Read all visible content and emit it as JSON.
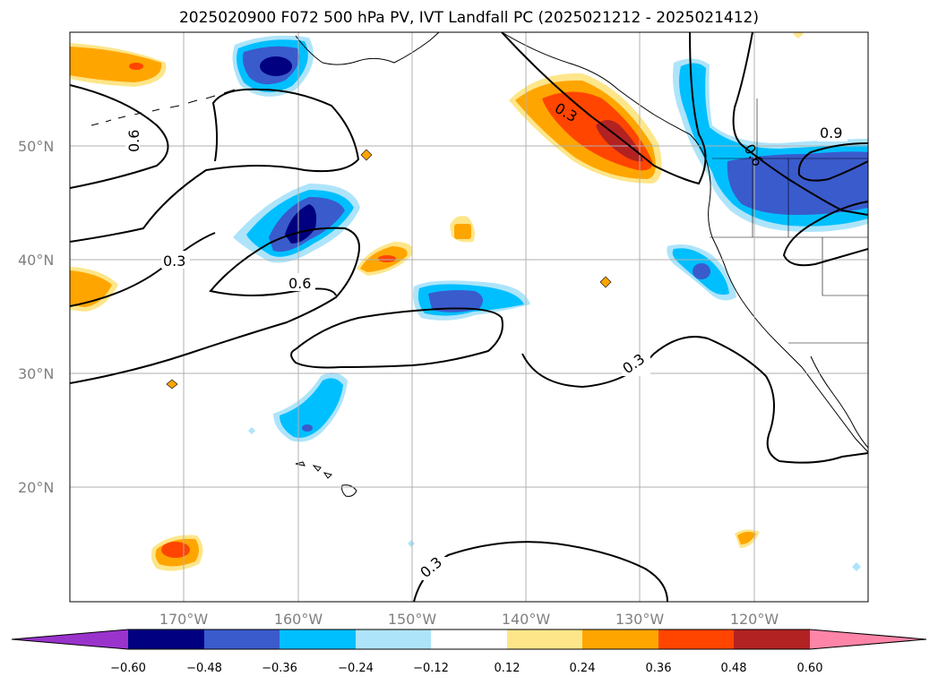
{
  "title": "2025020900 F072 500 hPa PV, IVT Landfall PC (2025021212 - 2025021412)",
  "map": {
    "lon_range": [
      180,
      110
    ],
    "lat_range": [
      10,
      60
    ],
    "lat_labels": [
      "20°N",
      "30°N",
      "40°N",
      "50°N"
    ],
    "lon_labels": [
      "170°W",
      "160°W",
      "150°W",
      "140°W",
      "130°W",
      "120°W"
    ],
    "contour_labels": [
      "0.3",
      "0.3",
      "0.3",
      "0.3",
      "0.6",
      "0.6",
      "0.6",
      "0.9"
    ]
  },
  "colorbar": {
    "ticks": [
      "−0.60",
      "−0.48",
      "−0.36",
      "−0.24",
      "−0.12",
      "0.12",
      "0.24",
      "0.36",
      "0.48",
      "0.60"
    ],
    "colors": [
      "#9933cc",
      "#000080",
      "#3a5bcc",
      "#00bfff",
      "#aee4fa",
      "#ffffff",
      "#fde68a",
      "#ffa500",
      "#ff4500",
      "#b22222",
      "#ff85a8"
    ]
  }
}
